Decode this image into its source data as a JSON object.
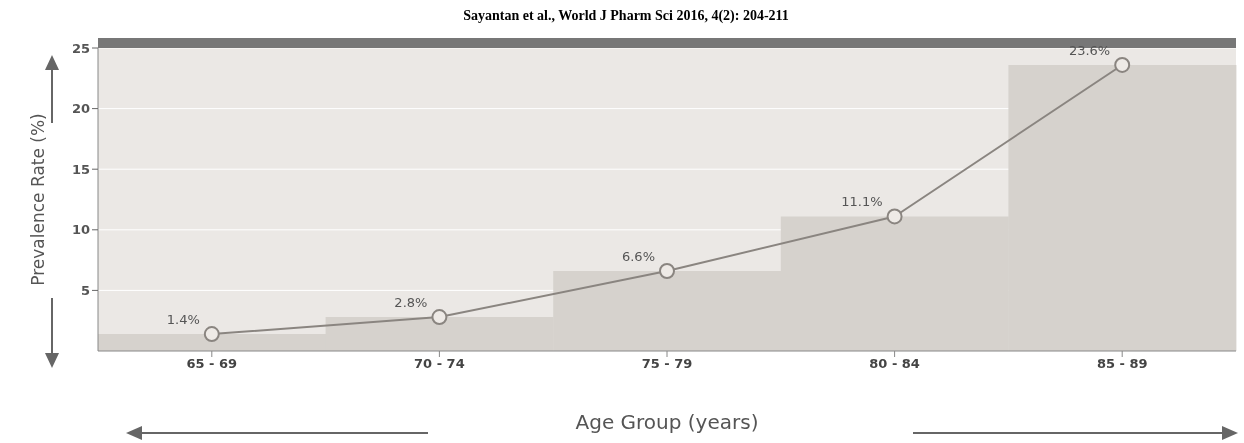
{
  "chart_data": {
    "type": "line",
    "annotations": [
      "Sayantan et al., World J Pharm Sci 2016, 4(2): 204-211"
    ],
    "xlabel": "Age Group (years)",
    "ylabel": "Prevalence Rate (%)",
    "categories": [
      "65 - 69",
      "70 - 74",
      "75 - 79",
      "80 - 84",
      "85 - 89"
    ],
    "series": [
      {
        "type": "bar",
        "color": "#d6d2cd",
        "values": [
          1.4,
          2.8,
          6.6,
          11.1,
          23.6
        ]
      },
      {
        "color": "#8a8580",
        "values": [
          1.4,
          2.8,
          6.6,
          11.1,
          23.6
        ],
        "value_labels": [
          "1.4%",
          "2.8%",
          "6.6%",
          "11.1%",
          "23.6%"
        ]
      }
    ],
    "ylim": [
      0,
      25
    ],
    "yticks": [
      5,
      10,
      15,
      20,
      25
    ],
    "grid": "y",
    "marker": "circle",
    "legend": false
  }
}
